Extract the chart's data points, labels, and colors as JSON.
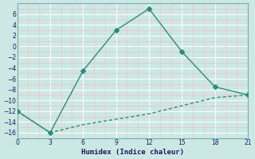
{
  "xlabel": "Humidex (Indice chaleur)",
  "x_solid": [
    0,
    3,
    6,
    9,
    12,
    15,
    18,
    21
  ],
  "y_solid": [
    -12,
    -16,
    -4.5,
    3,
    7,
    -1,
    -7.5,
    -9
  ],
  "x_dashed": [
    0,
    3,
    6,
    9,
    12,
    15,
    18,
    21
  ],
  "y_dashed": [
    -12,
    -16,
    -14.5,
    -13.5,
    -12.5,
    -11,
    -9.5,
    -9
  ],
  "line_color": "#2d8b7a",
  "bg_color": "#cce8e4",
  "grid_major_color": "#ffffff",
  "grid_minor_color": "#e8c8c8",
  "xlim": [
    0,
    21
  ],
  "ylim": [
    -17,
    8
  ],
  "xticks": [
    0,
    3,
    6,
    9,
    12,
    15,
    18,
    21
  ],
  "yticks": [
    -16,
    -14,
    -12,
    -10,
    -8,
    -6,
    -4,
    -2,
    0,
    2,
    4,
    6
  ],
  "markersize": 3,
  "linewidth": 1.0,
  "tick_labelsize": 5.5,
  "xlabel_fontsize": 6.5
}
